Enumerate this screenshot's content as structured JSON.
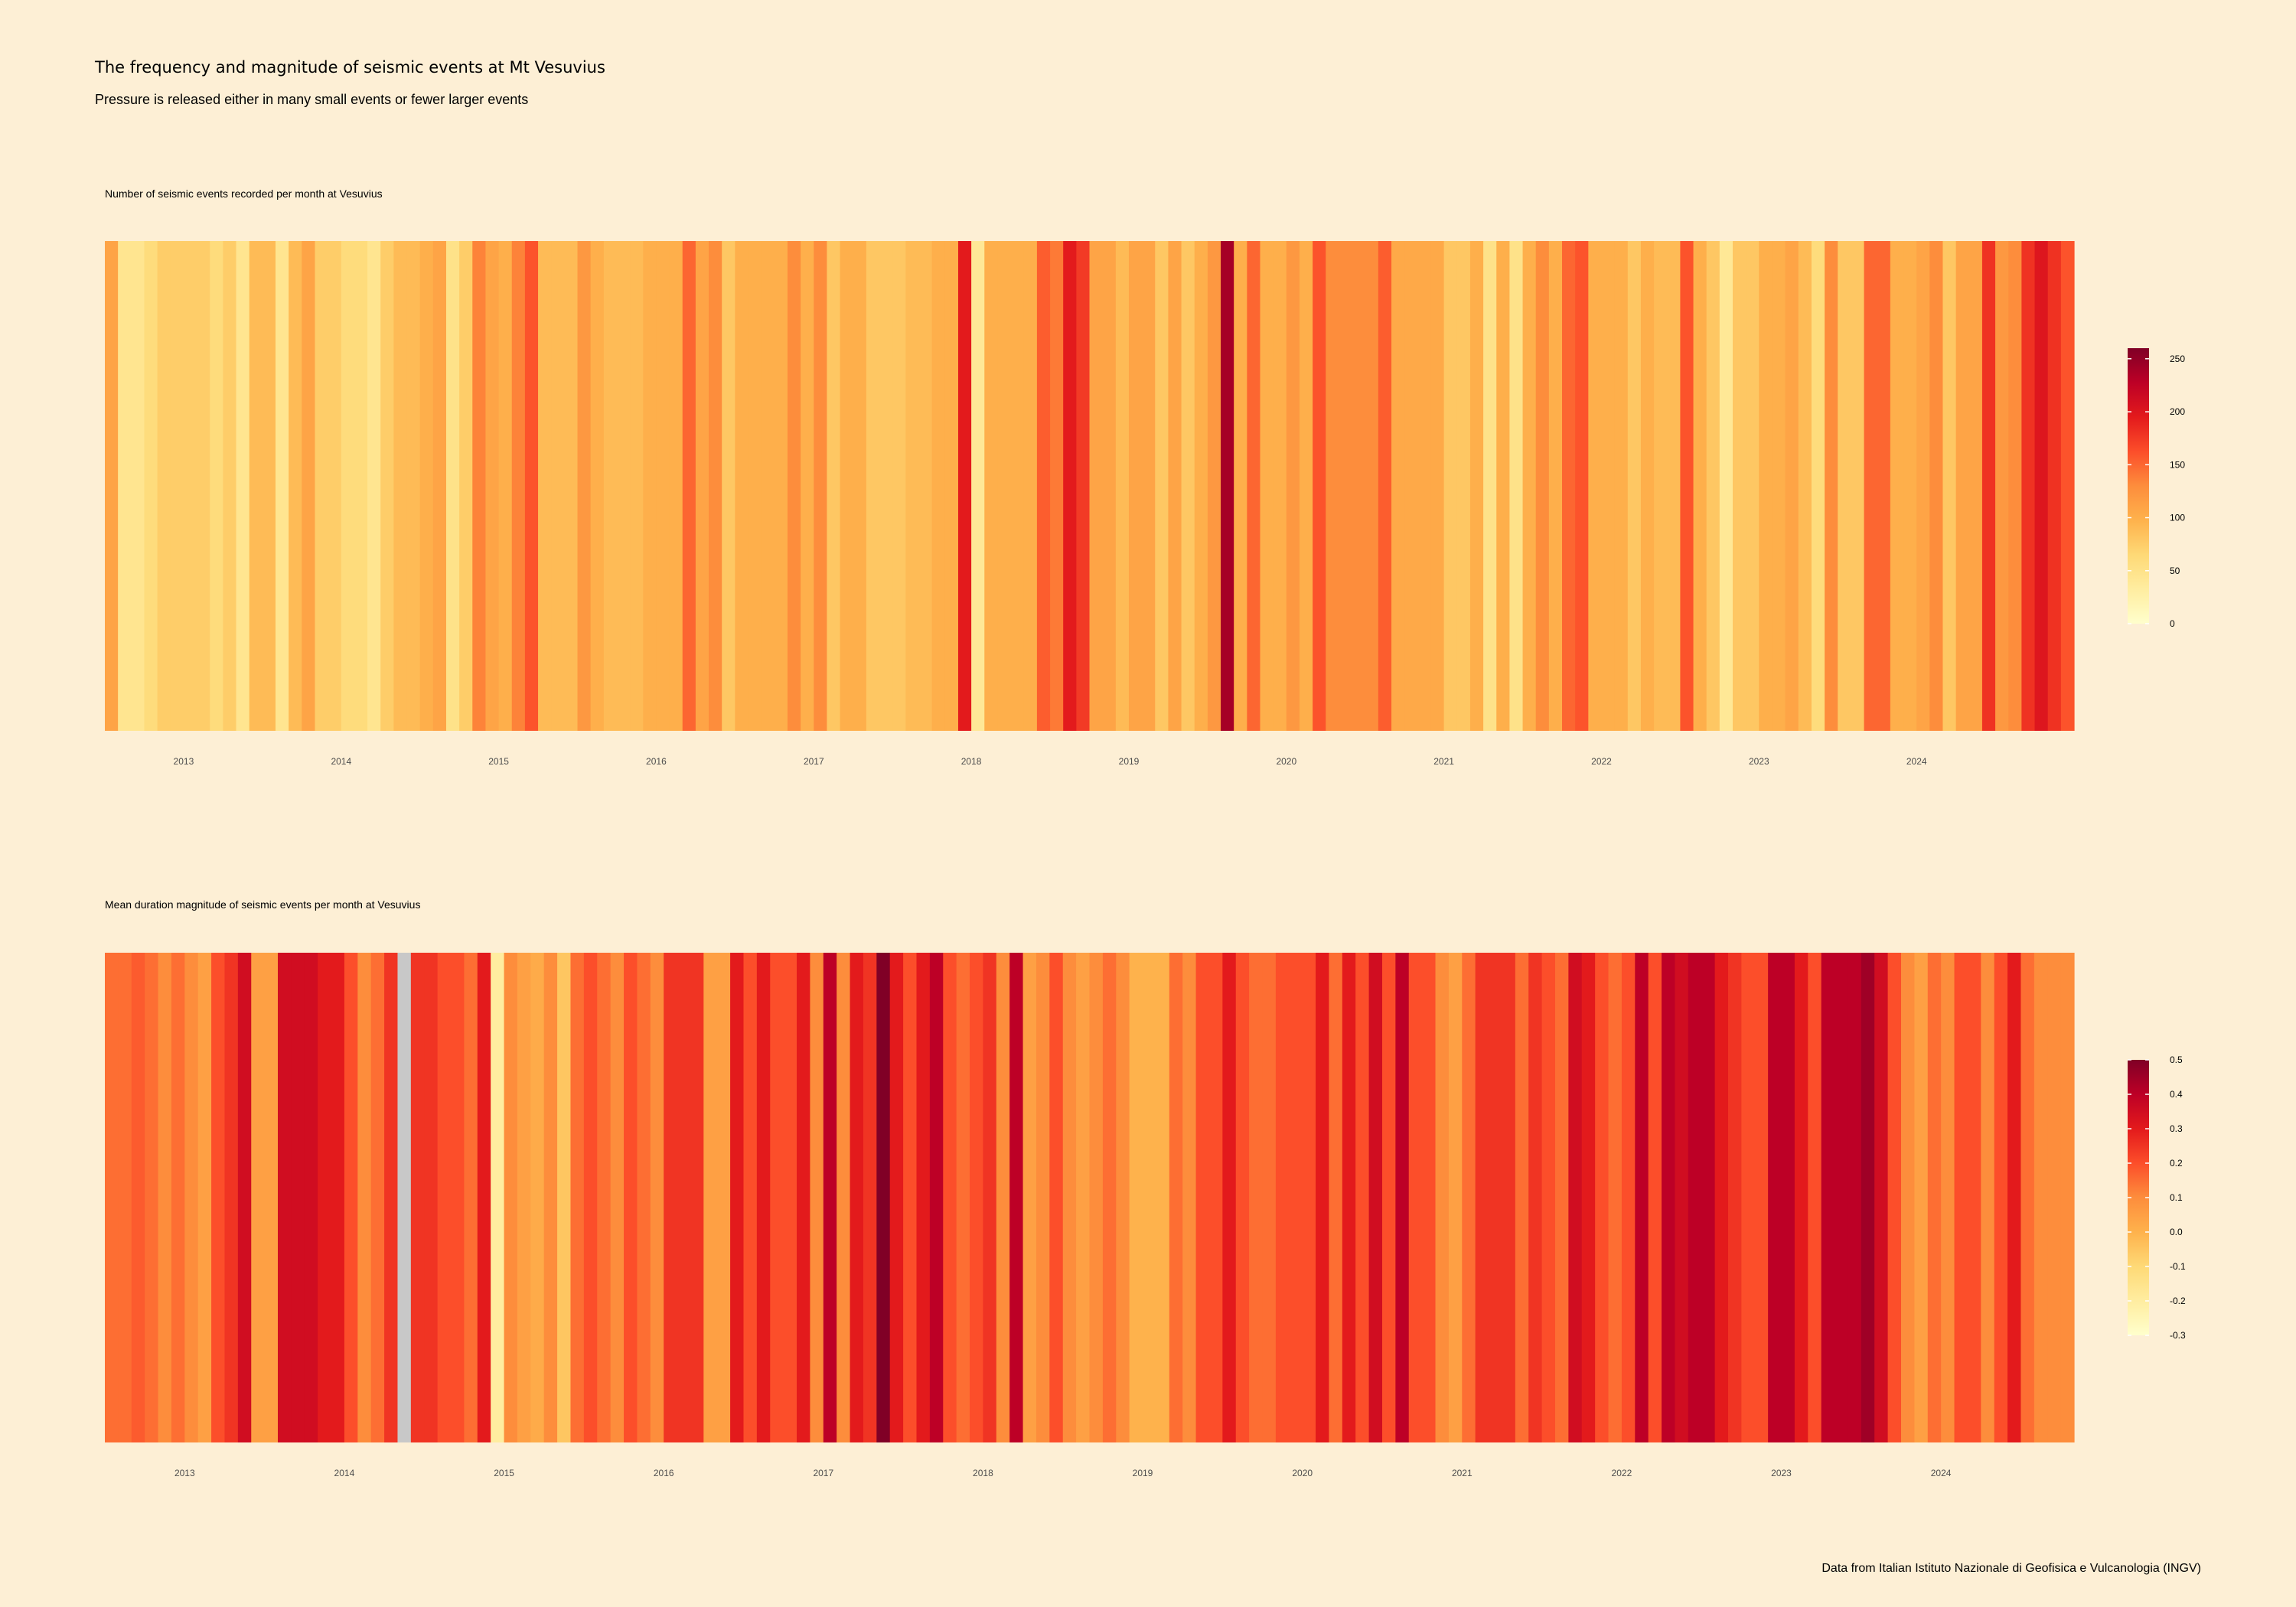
{
  "title": "The frequency and magnitude of seismic events at Mt Vesuvius",
  "subtitle": "Pressure is released either in many small events or fewer larger events",
  "caption": "Data from Italian Istituto Nazionale di Geofisica e Vulcanologia (INGV)",
  "colors": {
    "background": "#FDEFD5",
    "missing": "#C8C8C8",
    "palette": [
      "#FFFFCC",
      "#FFEDA0",
      "#FED976",
      "#FEB24C",
      "#FD8D3C",
      "#FC4E2A",
      "#E31A1C",
      "#BD0026",
      "#800026"
    ]
  },
  "chart_data": [
    {
      "type": "heatmap",
      "title": "Number of seismic events recorded per month at Vesuvius",
      "x_unit": "month",
      "x_start": "2013-01",
      "x_ticks": [
        "2013",
        "2014",
        "2015",
        "2016",
        "2017",
        "2018",
        "2019",
        "2020",
        "2021",
        "2022",
        "2023",
        "2024"
      ],
      "legend": {
        "position": "right",
        "limits": [
          0,
          260
        ],
        "breaks": [
          "0",
          "50",
          "100",
          "150",
          "200",
          "250"
        ]
      },
      "values": [
        110,
        45,
        45,
        60,
        75,
        75,
        75,
        75,
        60,
        75,
        45,
        90,
        90,
        45,
        90,
        110,
        75,
        75,
        60,
        60,
        45,
        75,
        90,
        90,
        100,
        110,
        50,
        75,
        135,
        110,
        100,
        135,
        160,
        90,
        90,
        90,
        120,
        100,
        90,
        90,
        90,
        100,
        100,
        100,
        150,
        110,
        130,
        80,
        100,
        100,
        100,
        100,
        130,
        100,
        130,
        80,
        100,
        100,
        80,
        80,
        80,
        90,
        90,
        100,
        100,
        195,
        40,
        100,
        100,
        100,
        100,
        155,
        140,
        195,
        175,
        110,
        110,
        90,
        110,
        110,
        80,
        110,
        80,
        100,
        120,
        240,
        100,
        150,
        100,
        100,
        120,
        100,
        160,
        130,
        130,
        130,
        130,
        155,
        105,
        105,
        105,
        105,
        80,
        80,
        100,
        50,
        100,
        50,
        100,
        130,
        100,
        150,
        160,
        100,
        100,
        100,
        80,
        100,
        90,
        90,
        160,
        100,
        80,
        40,
        80,
        80,
        100,
        100,
        110,
        90,
        60,
        130,
        80,
        80,
        150,
        150,
        100,
        100,
        110,
        130,
        80,
        110,
        110,
        180,
        120,
        130,
        180,
        200,
        180,
        160
      ]
    },
    {
      "type": "heatmap",
      "title": "Mean duration magnitude of seismic events per month at Vesuvius",
      "x_unit": "month",
      "x_start": "2013-01",
      "x_ticks": [
        "2013",
        "2014",
        "2015",
        "2016",
        "2017",
        "2018",
        "2019",
        "2020",
        "2021",
        "2022",
        "2023",
        "2024"
      ],
      "legend": {
        "position": "right",
        "limits": [
          -0.3,
          0.5
        ],
        "breaks": [
          "0.5",
          "0.4",
          "0.3",
          "0.2",
          "0.1",
          "0.0",
          "-0.1",
          "-0.2",
          "-0.3"
        ]
      },
      "values": [
        0.15,
        0.15,
        0.18,
        0.15,
        0.1,
        0.15,
        0.1,
        0.05,
        0.2,
        0.25,
        0.35,
        0.05,
        0.05,
        0.35,
        0.35,
        0.35,
        0.3,
        0.3,
        0.2,
        0.1,
        0.15,
        0.25,
        null,
        0.25,
        0.25,
        0.2,
        0.2,
        0.15,
        0.3,
        -0.2,
        0.1,
        0.05,
        0.02,
        0.1,
        -0.05,
        0.15,
        0.2,
        0.15,
        0.1,
        0.2,
        0.15,
        0.1,
        0.25,
        0.25,
        0.25,
        0.05,
        0.05,
        0.3,
        0.2,
        0.3,
        0.2,
        0.2,
        0.3,
        0.1,
        0.4,
        0.1,
        0.3,
        0.25,
        0.5,
        0.3,
        0.2,
        0.3,
        0.4,
        0.2,
        0.15,
        0.2,
        0.25,
        0.1,
        0.4,
        0.05,
        0.1,
        0.2,
        0.1,
        0.05,
        0.1,
        0.15,
        0.1,
        0.0,
        0.0,
        0.0,
        0.15,
        0.1,
        0.2,
        0.2,
        0.3,
        0.2,
        0.15,
        0.15,
        0.2,
        0.2,
        0.2,
        0.3,
        0.15,
        0.3,
        0.2,
        0.35,
        0.2,
        0.4,
        0.2,
        0.2,
        0.1,
        0.05,
        0.15,
        0.25,
        0.25,
        0.25,
        0.15,
        0.25,
        0.2,
        0.15,
        0.35,
        0.3,
        0.2,
        0.15,
        0.2,
        0.4,
        0.2,
        0.4,
        0.35,
        0.4,
        0.4,
        0.3,
        0.25,
        0.2,
        0.2,
        0.4,
        0.4,
        0.3,
        0.2,
        0.4,
        0.4,
        0.4,
        0.45,
        0.35,
        0.2,
        0.1,
        0.05,
        0.15,
        0.1,
        0.2,
        0.2,
        0.1,
        0.2,
        0.3,
        0.15,
        0.1,
        0.1,
        0.1
      ]
    }
  ]
}
